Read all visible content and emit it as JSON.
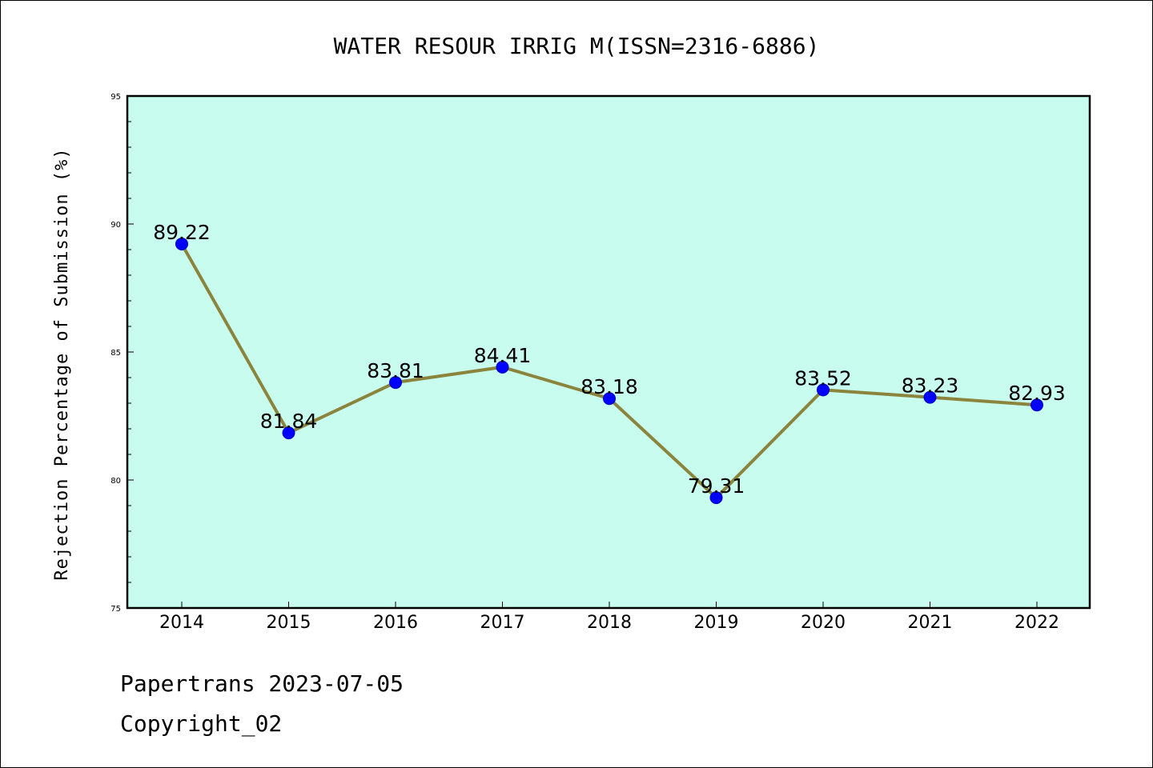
{
  "chart_data": {
    "type": "line",
    "title": "WATER RESOUR IRRIG M(ISSN=2316-6886)",
    "xlabel": "",
    "ylabel": "Rejection Percentage of Submission (%)",
    "categories": [
      "2014",
      "2015",
      "2016",
      "2017",
      "2018",
      "2019",
      "2020",
      "2021",
      "2022"
    ],
    "series": [
      {
        "values": [
          89.22,
          81.84,
          83.81,
          84.41,
          83.18,
          79.31,
          83.52,
          83.23,
          82.93
        ],
        "labels": [
          "89.22",
          "81.84",
          "83.81",
          "84.41",
          "83.18",
          "79.31",
          "83.52",
          "83.23",
          "82.93"
        ]
      }
    ],
    "ylim": [
      75,
      95
    ],
    "yticks": [
      "75",
      "80",
      "85",
      "90",
      "95"
    ],
    "grid": false,
    "colors": {
      "plot_background": "#c8fcee",
      "line": "#8b843c",
      "marker": "#0000ff"
    }
  },
  "footer": {
    "line1": "Papertrans 2023-07-05",
    "line2": "Copyright_02"
  }
}
